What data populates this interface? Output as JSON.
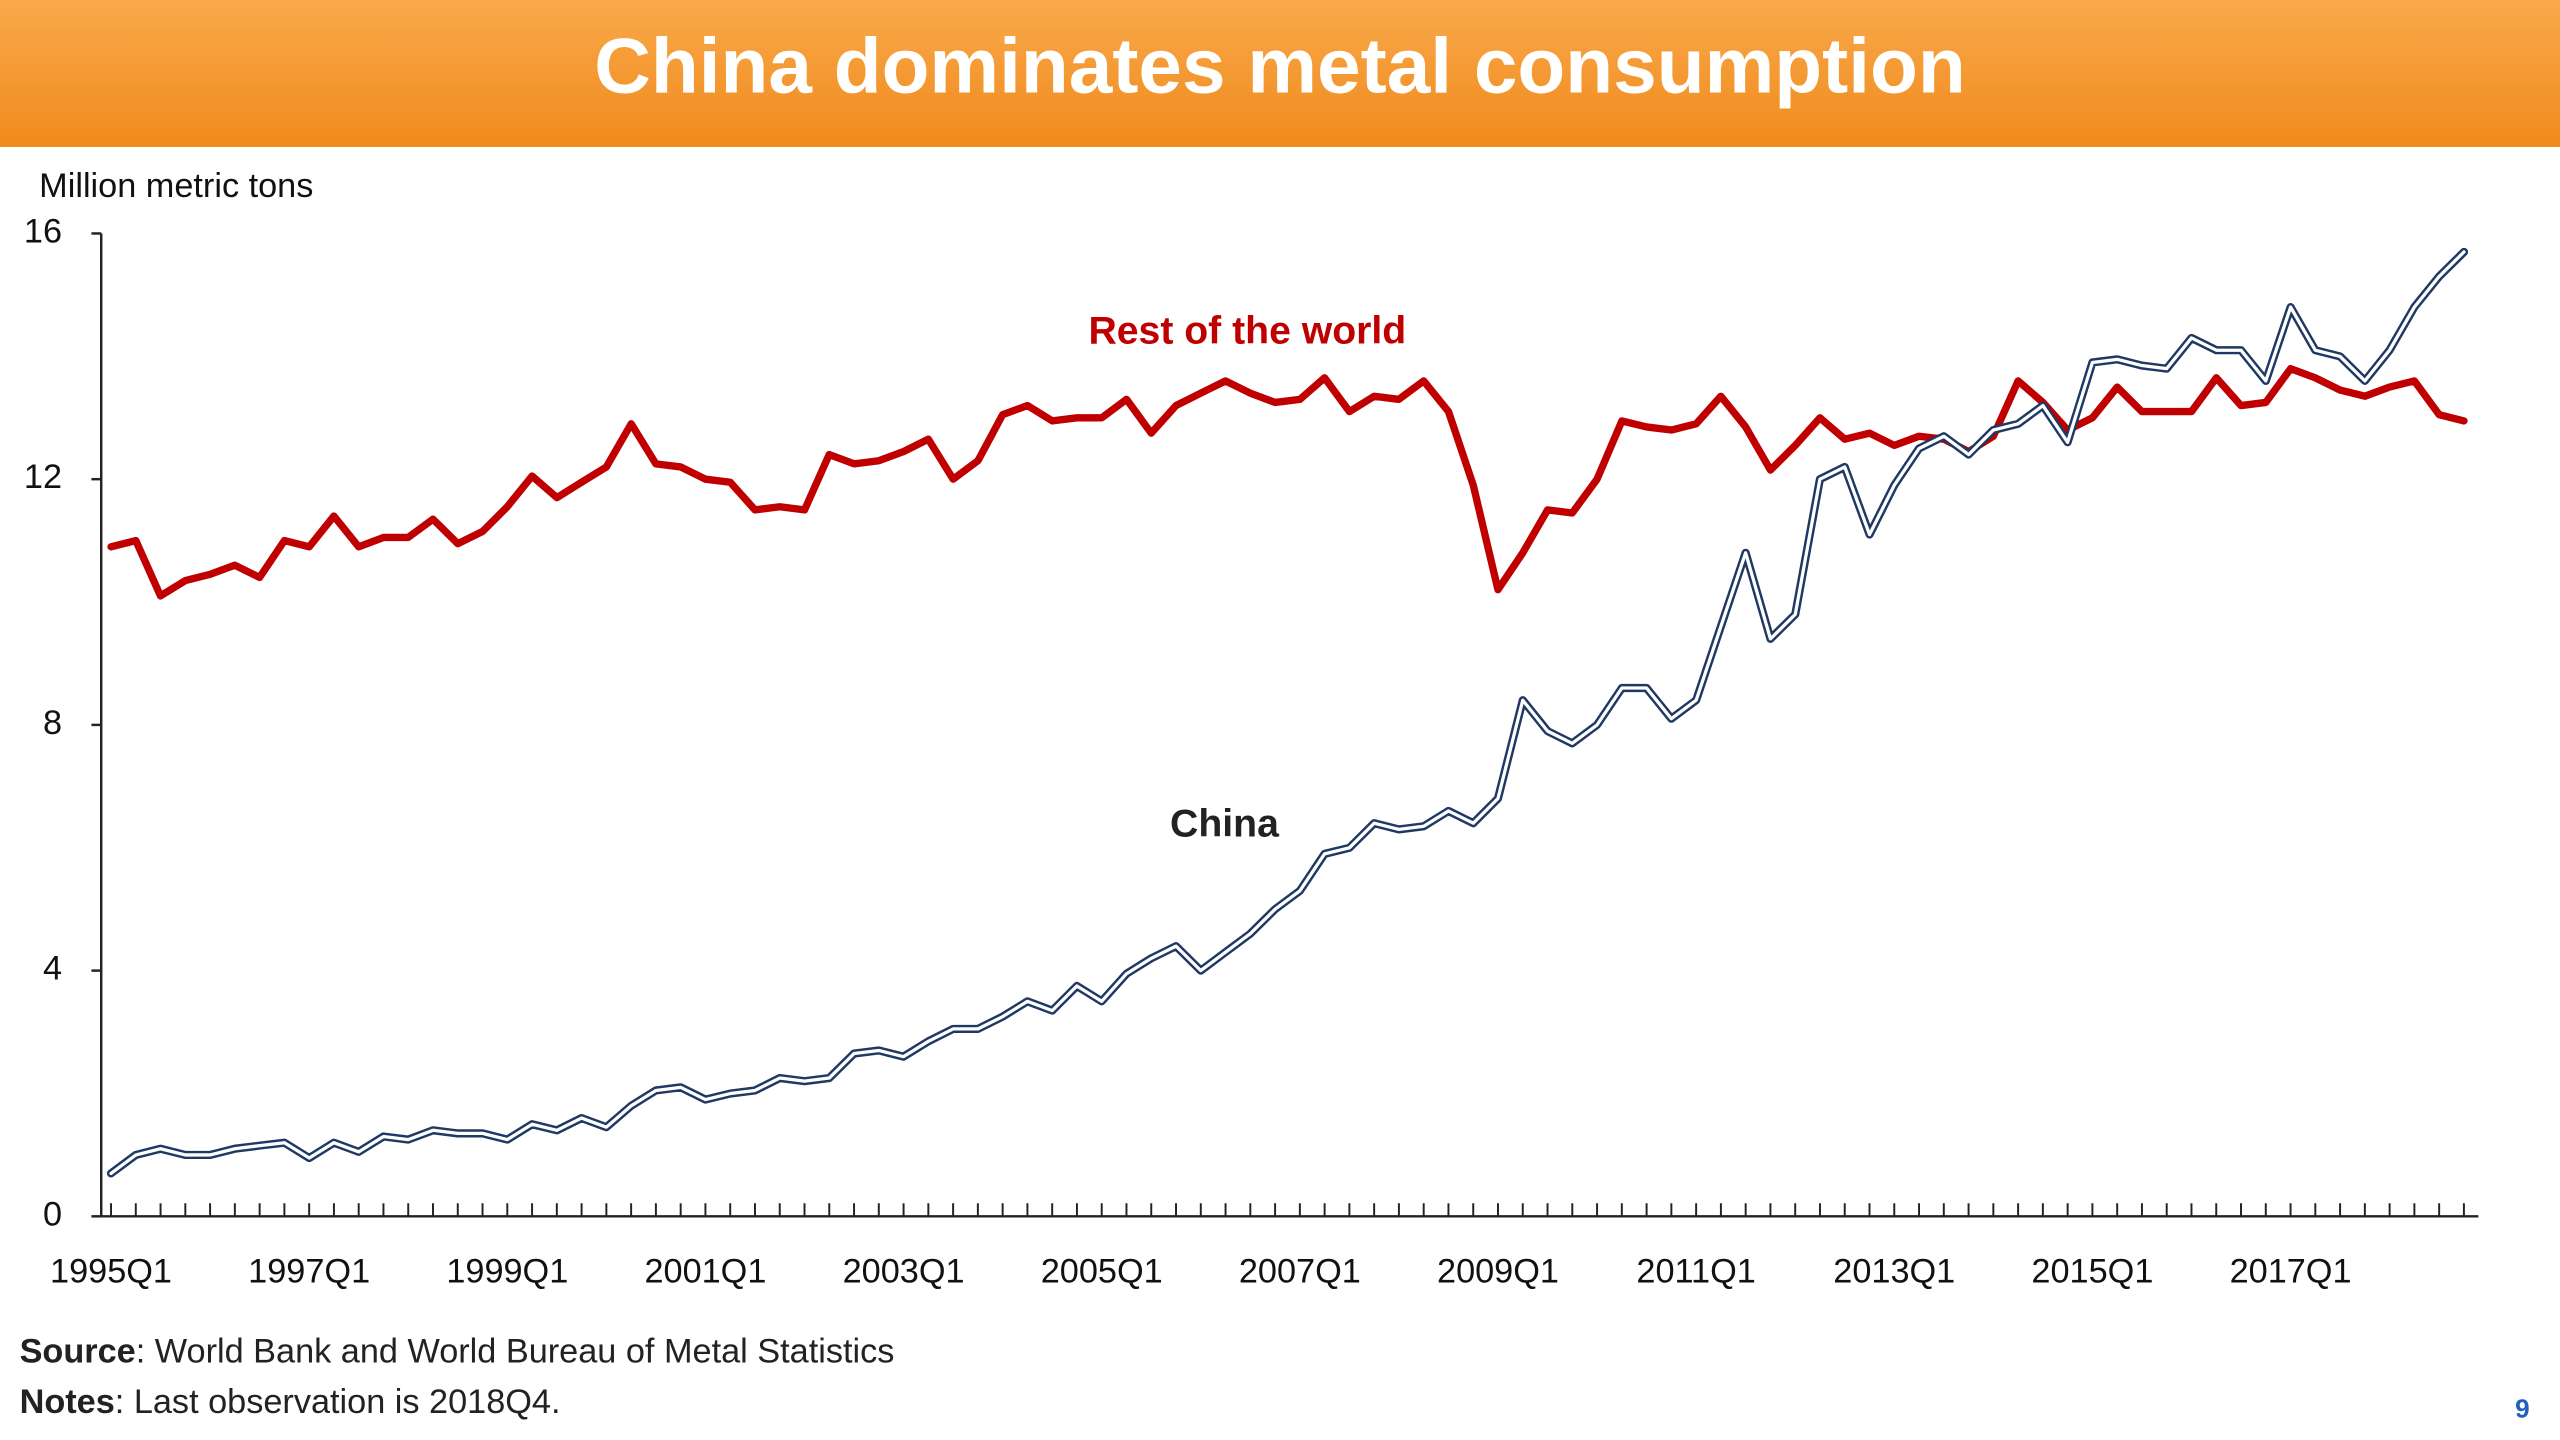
{
  "chart_data": {
    "type": "line",
    "title": "China dominates metal consumption",
    "y_label": "Million metric tons",
    "categories": [
      "1995Q1",
      null,
      null,
      null,
      null,
      null,
      null,
      null,
      "1997Q1",
      null,
      null,
      null,
      null,
      null,
      null,
      null,
      "1999Q1",
      null,
      null,
      null,
      null,
      null,
      null,
      null,
      "2001Q1",
      null,
      null,
      null,
      null,
      null,
      null,
      null,
      "2003Q1",
      null,
      null,
      null,
      null,
      null,
      null,
      null,
      "2005Q1",
      null,
      null,
      null,
      null,
      null,
      null,
      null,
      "2007Q1",
      null,
      null,
      null,
      null,
      null,
      null,
      null,
      "2009Q1",
      null,
      null,
      null,
      null,
      null,
      null,
      null,
      "2011Q1",
      null,
      null,
      null,
      null,
      null,
      null,
      null,
      "2013Q1",
      null,
      null,
      null,
      null,
      null,
      null,
      null,
      "2015Q1",
      null,
      null,
      null,
      null,
      null,
      null,
      null,
      "2017Q1",
      null,
      null,
      null,
      null,
      null,
      null,
      null
    ],
    "series": [
      {
        "name": "Rest of the world",
        "color": "#c00000",
        "values": [
          10.9,
          11.0,
          10.1,
          10.35,
          10.45,
          10.6,
          10.4,
          11.0,
          10.9,
          11.4,
          10.9,
          11.05,
          11.05,
          11.35,
          10.95,
          11.15,
          11.55,
          12.05,
          11.7,
          11.95,
          12.2,
          12.9,
          12.25,
          12.2,
          12.0,
          11.95,
          11.5,
          11.55,
          11.5,
          12.4,
          12.25,
          12.3,
          12.45,
          12.65,
          12.0,
          12.3,
          13.05,
          13.2,
          12.95,
          13.0,
          13.0,
          13.3,
          12.75,
          13.2,
          13.4,
          13.6,
          13.4,
          13.25,
          13.3,
          13.65,
          13.1,
          13.35,
          13.3,
          13.6,
          13.1,
          11.9,
          10.2,
          10.8,
          11.5,
          11.45,
          12.0,
          12.95,
          12.85,
          12.8,
          12.9,
          13.35,
          12.85,
          12.15,
          12.55,
          13.0,
          12.65,
          12.75,
          12.55,
          12.7,
          12.65,
          12.45,
          12.7,
          13.6,
          13.25,
          12.8,
          13.0,
          13.5,
          13.1,
          13.1,
          13.1,
          13.65,
          13.2,
          13.25,
          13.8,
          13.65,
          13.45,
          13.35,
          13.5,
          13.6,
          13.05,
          12.95
        ]
      },
      {
        "name": "China",
        "color": "#1f3864",
        "values": [
          0.7,
          1.0,
          1.1,
          1.0,
          1.0,
          1.1,
          1.15,
          1.2,
          0.95,
          1.2,
          1.05,
          1.3,
          1.25,
          1.4,
          1.35,
          1.35,
          1.25,
          1.5,
          1.4,
          1.6,
          1.45,
          1.8,
          2.05,
          2.1,
          1.9,
          2.0,
          2.05,
          2.25,
          2.2,
          2.25,
          2.65,
          2.7,
          2.6,
          2.85,
          3.05,
          3.05,
          3.25,
          3.5,
          3.35,
          3.75,
          3.5,
          3.95,
          4.2,
          4.4,
          4.0,
          4.3,
          4.6,
          5.0,
          5.3,
          5.9,
          6.0,
          6.4,
          6.3,
          6.35,
          6.6,
          6.4,
          6.8,
          8.4,
          7.9,
          7.7,
          8.0,
          8.6,
          8.6,
          8.1,
          8.4,
          9.6,
          10.8,
          9.4,
          9.8,
          12.0,
          12.2,
          11.1,
          11.9,
          12.5,
          12.7,
          12.4,
          12.8,
          12.9,
          13.2,
          12.6,
          13.9,
          13.95,
          13.85,
          13.8,
          14.3,
          14.1,
          14.1,
          13.6,
          14.8,
          14.1,
          14.0,
          13.6,
          14.1,
          14.8,
          15.3,
          15.7
        ]
      }
    ],
    "ylim": [
      0,
      16
    ],
    "yticks": [
      0,
      4,
      8,
      12,
      16
    ],
    "source": {
      "label": "Source",
      "text": ": World Bank and World Bureau of Metal Statistics"
    },
    "notes": {
      "label": "Notes",
      "text": ": Last observation is 2018Q4."
    },
    "page_number": "9"
  }
}
